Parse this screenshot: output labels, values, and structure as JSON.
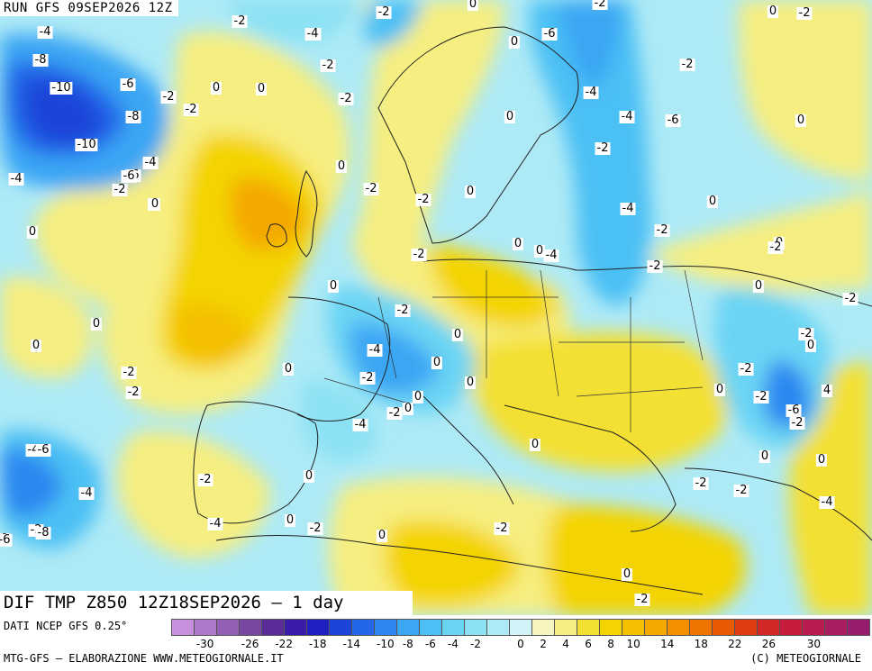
{
  "header": {
    "run_title": "RUN GFS 09SEP2026 12Z"
  },
  "map": {
    "field_title": "DIF TMP Z850 12Z18SEP2026 – 1 day",
    "labels": [
      "-4",
      "-8",
      "-10",
      "-6",
      "-8",
      "-10",
      "-4",
      "-6",
      "-2",
      "-4",
      "-4",
      "-2",
      "0",
      "0",
      "-2",
      "-2",
      "-4",
      "-2",
      "-2",
      "-2",
      "0",
      "-2",
      "-6",
      "0",
      "0",
      "0",
      "-2",
      "0",
      "-2",
      "0",
      "-2",
      "0",
      "-4",
      "-2",
      "0",
      "-2",
      "0",
      "0",
      "0",
      "0",
      "0",
      "0",
      "-4",
      "-2",
      "0",
      "0",
      "0",
      "0",
      "-2",
      "-4",
      "-2",
      "0",
      "-4",
      "0",
      "-2",
      "0",
      "-2",
      "0",
      "0",
      "-2",
      "-4",
      "-4",
      "-2",
      "-4",
      "-6",
      "-2",
      "-2",
      "-2",
      "-6",
      "-2",
      "0",
      "0",
      "-2",
      "0",
      "-2",
      "0",
      "-2",
      "0",
      "-2",
      "0",
      "-2",
      "-2",
      "0",
      "4",
      "-6",
      "-2",
      "0",
      "0",
      "-2",
      "-2",
      "-4",
      "-4",
      "-6",
      "-4",
      "-2",
      "0",
      "0",
      "-8",
      "-6",
      "-2",
      "0",
      "0",
      "-2",
      "0",
      "0",
      "-2",
      "0",
      "-2",
      "0"
    ]
  },
  "legend": {
    "source": "DATI NCEP GFS 0.25°",
    "footer_left": "MTG-GFS – ELABORAZIONE WWW.METEOGIORNALE.IT",
    "footer_right": "(C) METEOGIORNALE",
    "colors": [
      "#c890dc",
      "#ae78c8",
      "#9460b4",
      "#7a48a0",
      "#5a2c98",
      "#3a1ca8",
      "#2020c0",
      "#1c44d8",
      "#2466e8",
      "#2c88f0",
      "#3aa6f4",
      "#4cc0f4",
      "#6ad4f4",
      "#8ce2f4",
      "#aeeaf6",
      "#d2f4f8",
      "#f8f4c0",
      "#f6ee80",
      "#f4e030",
      "#f4d400",
      "#f4c000",
      "#f4a800",
      "#f49000",
      "#f07400",
      "#e85a00",
      "#e03c14",
      "#d42828",
      "#c81c3c",
      "#b81c50",
      "#a81c60",
      "#981c6c"
    ],
    "ticks": [
      "-30",
      "-26",
      "-22",
      "-18",
      "-14",
      "-10",
      "-8",
      "-6",
      "-4",
      "-2",
      "0",
      "2",
      "4",
      "6",
      "8",
      "10",
      "14",
      "18",
      "22",
      "26",
      "30"
    ]
  }
}
